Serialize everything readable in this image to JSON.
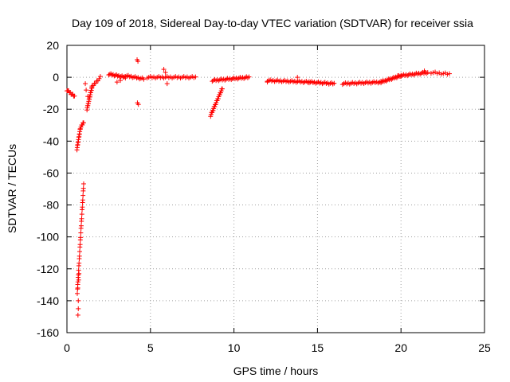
{
  "chart_data": {
    "type": "scatter",
    "title": "Day 109 of 2018, Sidereal Day-to-day VTEC variation (SDTVAR) for receiver ssia",
    "xlabel": "GPS time / hours",
    "ylabel": "SDTVAR / TECUs",
    "xlim": [
      0,
      25
    ],
    "ylim": [
      -160,
      20
    ],
    "xticks": [
      "0",
      "5",
      "10",
      "15",
      "20",
      "25"
    ],
    "yticks": [
      "20",
      "0",
      "-20",
      "-40",
      "-60",
      "-80",
      "-100",
      "-120",
      "-140",
      "-160"
    ],
    "grid": true,
    "marker": "+",
    "color": "#ff0000",
    "segments": [
      {
        "x0": 0.0,
        "x1": 0.45,
        "y0": -8,
        "y1": -12,
        "n": 10
      },
      {
        "x0": 0.6,
        "x1": 0.8,
        "y0": -45,
        "y1": -32,
        "n": 14
      },
      {
        "x0": 0.8,
        "x1": 1.0,
        "y0": -32,
        "y1": -28,
        "n": 6
      },
      {
        "x0": 0.62,
        "x1": 1.0,
        "y0": -135,
        "y1": -67,
        "n": 30
      },
      {
        "x0": 1.2,
        "x1": 1.5,
        "y0": -20,
        "y1": -6,
        "n": 18
      },
      {
        "x0": 1.5,
        "x1": 2.0,
        "y0": -6,
        "y1": 0,
        "n": 8
      },
      {
        "x0": 2.5,
        "x1": 3.5,
        "y0": 2,
        "y1": 0,
        "n": 16
      },
      {
        "x0": 3.5,
        "x1": 4.6,
        "y0": 1,
        "y1": -1,
        "n": 14
      },
      {
        "x0": 4.8,
        "x1": 7.7,
        "y0": 0,
        "y1": 0,
        "n": 30
      },
      {
        "x0": 8.6,
        "x1": 9.3,
        "y0": -24,
        "y1": -7,
        "n": 24
      },
      {
        "x0": 8.7,
        "x1": 10.9,
        "y0": -2,
        "y1": 0,
        "n": 30
      },
      {
        "x0": 12.0,
        "x1": 14.5,
        "y0": -2,
        "y1": -3,
        "n": 30
      },
      {
        "x0": 14.5,
        "x1": 16.0,
        "y0": -3,
        "y1": -4,
        "n": 20
      },
      {
        "x0": 16.5,
        "x1": 18.8,
        "y0": -4,
        "y1": -3,
        "n": 28
      },
      {
        "x0": 18.8,
        "x1": 20.0,
        "y0": -3,
        "y1": 1,
        "n": 20
      },
      {
        "x0": 20.0,
        "x1": 21.6,
        "y0": 1,
        "y1": 3,
        "n": 22
      },
      {
        "x0": 21.8,
        "x1": 22.9,
        "y0": 3,
        "y1": 2,
        "n": 10
      }
    ],
    "points": [
      [
        0.68,
        -140
      ],
      [
        0.68,
        -145
      ],
      [
        0.66,
        -149
      ],
      [
        0.7,
        -127
      ],
      [
        0.72,
        -123
      ],
      [
        0.65,
        -132
      ],
      [
        1.1,
        -4
      ],
      [
        1.15,
        -8
      ],
      [
        1.25,
        -12
      ],
      [
        4.2,
        11
      ],
      [
        4.25,
        10
      ],
      [
        4.22,
        -16
      ],
      [
        4.28,
        -17
      ],
      [
        5.8,
        5
      ],
      [
        5.9,
        3
      ],
      [
        6.0,
        -4
      ],
      [
        3.0,
        -3
      ],
      [
        3.2,
        -2
      ],
      [
        12.0,
        -3
      ],
      [
        13.8,
        0
      ],
      [
        19.8,
        1
      ],
      [
        21.4,
        4
      ]
    ]
  }
}
